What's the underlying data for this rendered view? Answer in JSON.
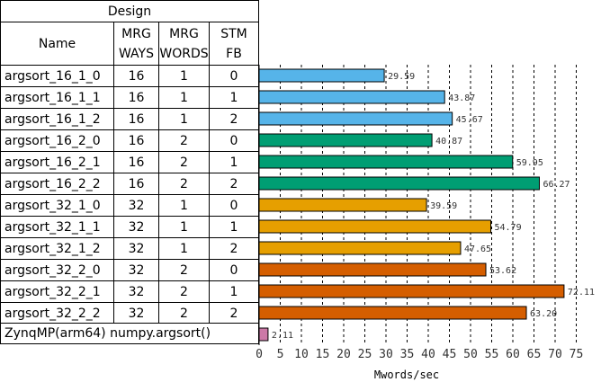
{
  "table": {
    "group_header": "Design",
    "headers": {
      "name": "Name",
      "mrg_ways": [
        "MRG",
        "WAYS"
      ],
      "mrg_words": [
        "MRG",
        "WORDS"
      ],
      "stm_fb": [
        "STM",
        "FB"
      ]
    },
    "rows": [
      {
        "name": "argsort_16_1_0",
        "ways": "16",
        "words": "1",
        "fb": "0"
      },
      {
        "name": "argsort_16_1_1",
        "ways": "16",
        "words": "1",
        "fb": "1"
      },
      {
        "name": "argsort_16_1_2",
        "ways": "16",
        "words": "1",
        "fb": "2"
      },
      {
        "name": "argsort_16_2_0",
        "ways": "16",
        "words": "2",
        "fb": "0"
      },
      {
        "name": "argsort_16_2_1",
        "ways": "16",
        "words": "2",
        "fb": "1"
      },
      {
        "name": "argsort_16_2_2",
        "ways": "16",
        "words": "2",
        "fb": "2"
      },
      {
        "name": "argsort_32_1_0",
        "ways": "32",
        "words": "1",
        "fb": "0"
      },
      {
        "name": "argsort_32_1_1",
        "ways": "32",
        "words": "1",
        "fb": "1"
      },
      {
        "name": "argsort_32_1_2",
        "ways": "32",
        "words": "1",
        "fb": "2"
      },
      {
        "name": "argsort_32_2_0",
        "ways": "32",
        "words": "2",
        "fb": "0"
      },
      {
        "name": "argsort_32_2_1",
        "ways": "32",
        "words": "2",
        "fb": "1"
      },
      {
        "name": "argsort_32_2_2",
        "ways": "32",
        "words": "2",
        "fb": "2"
      }
    ],
    "footer_row": "ZynqMP(arm64) numpy.argsort()"
  },
  "chart_data": {
    "type": "bar",
    "orientation": "horizontal",
    "xlabel": "Mwords/sec",
    "xlim": [
      0,
      75
    ],
    "xticks": [
      "0",
      "5",
      "10",
      "15",
      "20",
      "25",
      "30",
      "35",
      "40",
      "45",
      "50",
      "55",
      "60",
      "65",
      "70",
      "75"
    ],
    "grid": "vertical dashed",
    "categories": [
      "argsort_16_1_0",
      "argsort_16_1_1",
      "argsort_16_1_2",
      "argsort_16_2_0",
      "argsort_16_2_1",
      "argsort_16_2_2",
      "argsort_32_1_0",
      "argsort_32_1_1",
      "argsort_32_1_2",
      "argsort_32_2_0",
      "argsort_32_2_1",
      "argsort_32_2_2",
      "ZynqMP(arm64) numpy.argsort()"
    ],
    "values": [
      29.59,
      43.87,
      45.67,
      40.87,
      59.95,
      66.27,
      39.59,
      54.79,
      47.65,
      53.62,
      72.11,
      63.2,
      2.11
    ],
    "value_labels": [
      "29.59",
      "43.87",
      "45.67",
      "40.87",
      "59.95",
      "66.27",
      "39.59",
      "54.79",
      "47.65",
      "53.62",
      "72.11",
      "63.20",
      "2.11"
    ],
    "colors": [
      "#56b4e9",
      "#56b4e9",
      "#56b4e9",
      "#009e73",
      "#009e73",
      "#009e73",
      "#e69f00",
      "#e69f00",
      "#e69f00",
      "#d55e00",
      "#d55e00",
      "#d55e00",
      "#cc79a7"
    ]
  }
}
